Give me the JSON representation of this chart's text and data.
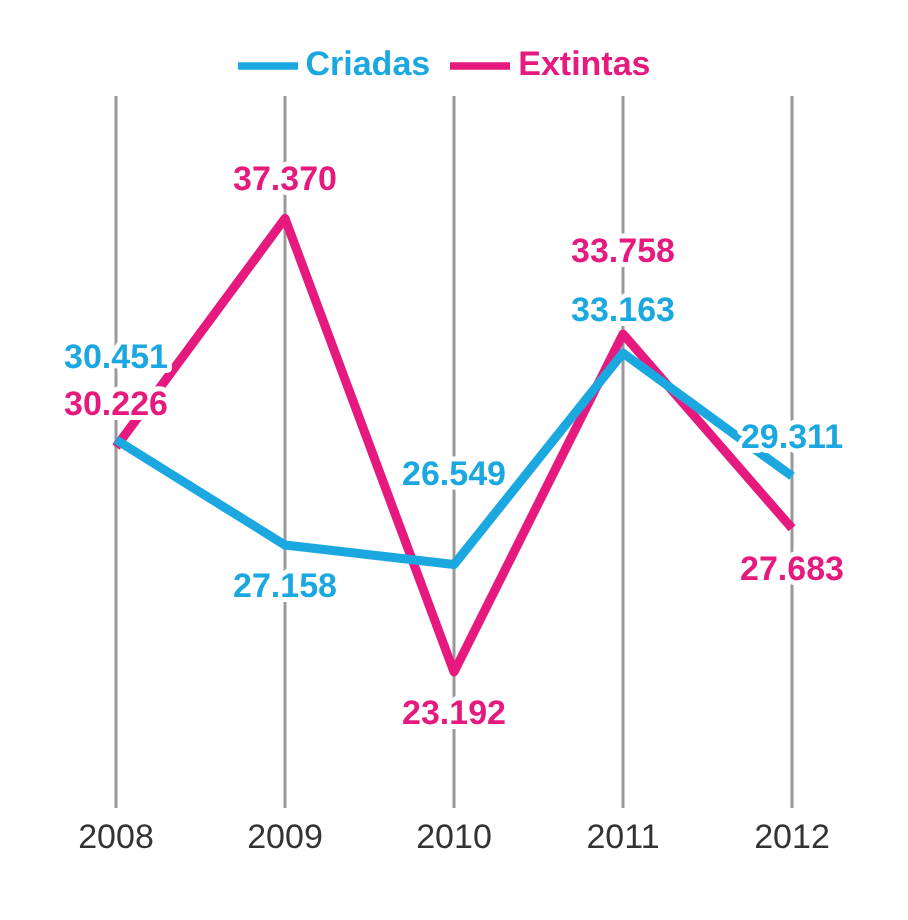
{
  "chart_data": {
    "type": "line",
    "categories": [
      "2008",
      "2009",
      "2010",
      "2011",
      "2012"
    ],
    "series": [
      {
        "name": "Criadas",
        "color": "#1ba8e0",
        "values": [
          30451,
          27158,
          26549,
          33163,
          29311
        ],
        "value_labels": [
          "30.451",
          "27.158",
          "26.549",
          "33.163",
          "29.311"
        ]
      },
      {
        "name": "Extintas",
        "color": "#e5197e",
        "values": [
          30226,
          37370,
          23192,
          33758,
          27683
        ],
        "value_labels": [
          "30.226",
          "37.370",
          "23.192",
          "33.758",
          "27.683"
        ]
      }
    ],
    "grid": "x",
    "legend": "top",
    "marker": "none",
    "line_style": "solid"
  }
}
